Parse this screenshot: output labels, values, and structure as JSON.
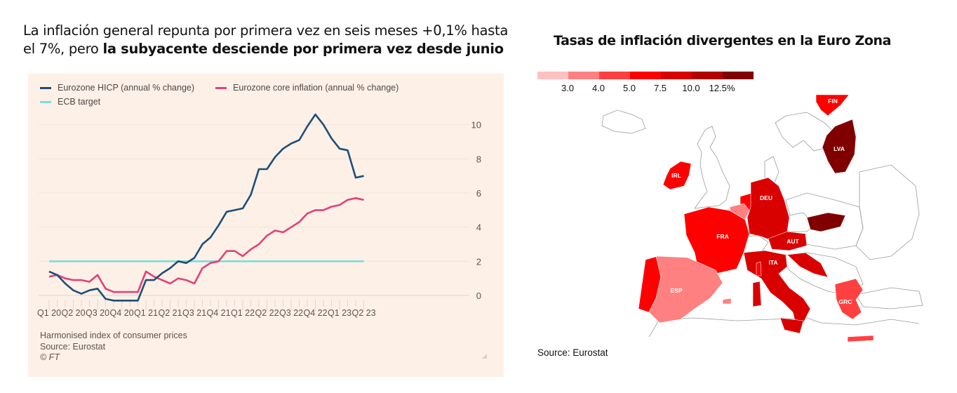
{
  "headline": {
    "text_regular": "La inflación general repunta por primera vez en seis meses +0,1% hasta el 7%, pero ",
    "text_bold": "la subyacente desciende por primera vez desde junio"
  },
  "chart_data": [
    {
      "type": "line",
      "title": "",
      "legend": [
        {
          "name": "Eurozone HICP (annual % change)",
          "color": "#1f4e79"
        },
        {
          "name": "Eurozone core inflation (annual % change)",
          "color": "#e0427b"
        },
        {
          "name": "ECB target",
          "color": "#7ddcdc"
        }
      ],
      "legend_placement": "top-left",
      "x_tick_labels": [
        "Q1 20",
        "Q2 20",
        "Q3 20",
        "Q4 20",
        "Q1 21",
        "Q2 21",
        "Q3 21",
        "Q4 21",
        "Q1 22",
        "Q2 22",
        "Q3 22",
        "Q4 22",
        "Q1 23",
        "Q2 23"
      ],
      "x_frequency": "monthly",
      "x_start": "Jan 2020",
      "y_ticks": [
        0,
        2,
        4,
        6,
        8,
        10
      ],
      "ylim": [
        -0.5,
        11
      ],
      "y_axis_side": "right",
      "grid": true,
      "series": [
        {
          "name": "Eurozone HICP (annual % change)",
          "color": "#1f4e79",
          "values": [
            1.4,
            1.2,
            0.7,
            0.3,
            0.1,
            0.3,
            0.4,
            -0.2,
            -0.3,
            -0.3,
            -0.3,
            -0.3,
            0.9,
            0.9,
            1.3,
            1.6,
            2.0,
            1.9,
            2.2,
            3.0,
            3.4,
            4.1,
            4.9,
            5.0,
            5.1,
            5.9,
            7.4,
            7.4,
            8.1,
            8.6,
            8.9,
            9.1,
            9.9,
            10.6,
            10.0,
            9.2,
            8.6,
            8.5,
            6.9,
            7.0
          ]
        },
        {
          "name": "Eurozone core inflation (annual % change)",
          "color": "#e0427b",
          "values": [
            1.1,
            1.2,
            1.0,
            0.9,
            0.9,
            0.8,
            1.2,
            0.4,
            0.2,
            0.2,
            0.2,
            0.2,
            1.4,
            1.1,
            0.9,
            0.7,
            1.0,
            0.9,
            0.7,
            1.6,
            1.9,
            2.0,
            2.6,
            2.6,
            2.3,
            2.7,
            3.0,
            3.5,
            3.8,
            3.7,
            4.0,
            4.3,
            4.8,
            5.0,
            5.0,
            5.2,
            5.3,
            5.6,
            5.7,
            5.6
          ]
        },
        {
          "name": "ECB target",
          "color": "#7ddcdc",
          "values": [
            2,
            2,
            2,
            2,
            2,
            2,
            2,
            2,
            2,
            2,
            2,
            2,
            2,
            2,
            2,
            2,
            2,
            2,
            2,
            2,
            2,
            2,
            2,
            2,
            2,
            2,
            2,
            2,
            2,
            2,
            2,
            2,
            2,
            2,
            2,
            2,
            2,
            2,
            2,
            2
          ]
        }
      ],
      "footer": {
        "note": "Harmonised index of consumer prices",
        "source": "Source: Eurostat",
        "copyright": "© FT"
      }
    },
    {
      "type": "heatmap",
      "subtype": "choropleth-map",
      "title": "Tasas de inflación divergentes en la Euro Zona",
      "scale": {
        "bins": [
          {
            "upper": "3.0",
            "color": "#ffc0c0"
          },
          {
            "upper": "4.0",
            "color": "#ff8080"
          },
          {
            "upper": "5.0",
            "color": "#ff4040"
          },
          {
            "upper": "7.5",
            "color": "#ff0000"
          },
          {
            "upper": "10.0",
            "color": "#d90000"
          },
          {
            "upper": "12.5%",
            "color": "#b30000"
          },
          {
            "upper": "",
            "color": "#800000"
          }
        ],
        "labels": [
          "3.0",
          "4.0",
          "5.0",
          "7.5",
          "10.0",
          "12.5%"
        ]
      },
      "labeled_countries": [
        {
          "code": "FIN",
          "bin": "5.0–7.5"
        },
        {
          "code": "LVA",
          "bin": ">12.5"
        },
        {
          "code": "IRL",
          "bin": "5.0–7.5"
        },
        {
          "code": "DEU",
          "bin": "7.5–10.0"
        },
        {
          "code": "FRA",
          "bin": "5.0–7.5"
        },
        {
          "code": "AUT",
          "bin": "7.5–10.0"
        },
        {
          "code": "ITA",
          "bin": "7.5–10.0"
        },
        {
          "code": "ESP",
          "bin": "3.0–4.0"
        },
        {
          "code": "GRC",
          "bin": "4.0–5.0"
        }
      ],
      "source": "Source: Eurostat"
    }
  ]
}
